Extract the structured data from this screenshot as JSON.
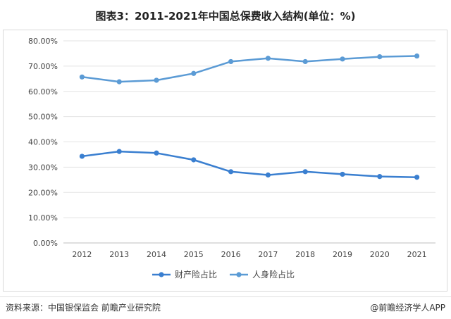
{
  "title": "图表3：2011-2021年中国总保费收入结构(单位：%)",
  "footer": {
    "source": "资料来源：中国银保监会 前瞻产业研究院",
    "credit": "@前瞻经济学人APP"
  },
  "chart_data": {
    "type": "line",
    "title": "图表3：2011-2021年中国总保费收入结构(单位：%)",
    "x": [
      "2012",
      "2013",
      "2014",
      "2015",
      "2016",
      "2017",
      "2018",
      "2019",
      "2020",
      "2021"
    ],
    "ylim": [
      0,
      80
    ],
    "yticks": [
      "0.00%",
      "10.00%",
      "20.00%",
      "30.00%",
      "40.00%",
      "50.00%",
      "60.00%",
      "70.00%",
      "80.00%"
    ],
    "grid": true,
    "legend_position": "bottom",
    "series": [
      {
        "name": "财产险占比",
        "color": "#3a7fd0",
        "values": [
          34.3,
          36.2,
          35.6,
          32.9,
          28.2,
          26.9,
          28.2,
          27.2,
          26.3,
          26.0
        ]
      },
      {
        "name": "人身险占比",
        "color": "#5b9bd5",
        "values": [
          65.7,
          63.8,
          64.4,
          67.1,
          71.8,
          73.1,
          71.8,
          72.8,
          73.7,
          74.0
        ]
      }
    ]
  }
}
